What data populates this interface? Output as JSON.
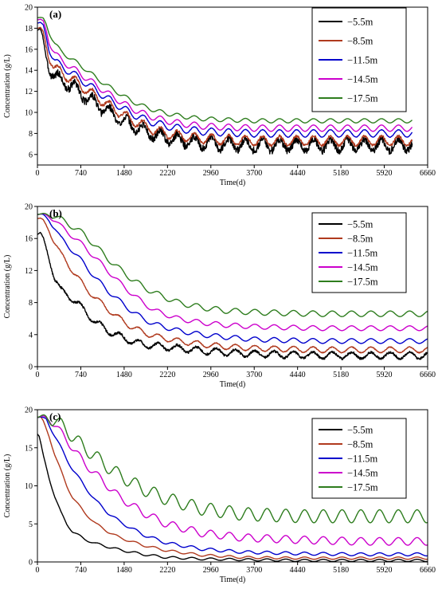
{
  "chart_data": [
    {
      "type": "line",
      "panel_label": "(a)",
      "xlabel": "Time(d)",
      "ylabel": "Concentration (g/L)",
      "xlim": [
        0,
        6660
      ],
      "ylim": [
        5,
        20
      ],
      "xticks": [
        0,
        740,
        1480,
        2220,
        2960,
        3700,
        4440,
        5180,
        5920,
        6660
      ],
      "yticks": [
        6,
        8,
        10,
        12,
        14,
        16,
        18,
        20
      ],
      "legend_position": "top-right",
      "series": [
        {
          "name": "−5.5m",
          "color": "#000000",
          "x": [
            0,
            50,
            100,
            150,
            200,
            300,
            400,
            600,
            800,
            1000,
            1200,
            1400,
            1600,
            1800,
            2000,
            2200,
            2500,
            2800,
            3200,
            3700,
            4200,
            4700,
            5200,
            5700,
            6200,
            6400
          ],
          "y": [
            17.8,
            17.9,
            16.8,
            15.2,
            14.3,
            13.4,
            13.0,
            12.5,
            11.6,
            10.8,
            10.1,
            9.4,
            8.8,
            8.3,
            7.9,
            7.6,
            7.3,
            7.1,
            7.0,
            6.9,
            6.9,
            6.9,
            6.9,
            6.9,
            6.9,
            6.9
          ],
          "osc_amp": 0.55,
          "osc_period": 290,
          "noise": 0.35
        },
        {
          "name": "−8.5m",
          "color": "#b03a1e",
          "x": [
            0,
            50,
            100,
            150,
            200,
            300,
            400,
            600,
            800,
            1000,
            1200,
            1400,
            1600,
            1800,
            2000,
            2200,
            2500,
            2800,
            3200,
            3700,
            4200,
            4700,
            5200,
            5700,
            6200,
            6400
          ],
          "y": [
            18.0,
            18.0,
            17.5,
            16.3,
            15.2,
            14.2,
            13.8,
            13.1,
            12.3,
            11.5,
            10.7,
            10.0,
            9.3,
            8.8,
            8.3,
            8.0,
            7.7,
            7.5,
            7.4,
            7.3,
            7.3,
            7.3,
            7.3,
            7.3,
            7.3,
            7.3
          ],
          "osc_amp": 0.45,
          "osc_period": 290,
          "noise": 0.12
        },
        {
          "name": "−11.5m",
          "color": "#0000cc",
          "x": [
            0,
            50,
            100,
            150,
            200,
            300,
            400,
            600,
            800,
            1000,
            1200,
            1400,
            1600,
            1800,
            2000,
            2200,
            2500,
            2800,
            3200,
            3700,
            4200,
            4700,
            5200,
            5700,
            6200,
            6400
          ],
          "y": [
            18.5,
            18.5,
            18.2,
            17.2,
            16.0,
            14.9,
            14.4,
            13.7,
            12.9,
            12.1,
            11.3,
            10.6,
            9.9,
            9.4,
            9.0,
            8.7,
            8.4,
            8.2,
            8.1,
            8.0,
            8.0,
            8.0,
            8.0,
            8.0,
            8.0,
            8.0
          ],
          "osc_amp": 0.35,
          "osc_period": 290,
          "noise": 0.02
        },
        {
          "name": "−14.5m",
          "color": "#cc00cc",
          "x": [
            0,
            50,
            100,
            150,
            200,
            300,
            400,
            600,
            800,
            1000,
            1200,
            1400,
            1600,
            1800,
            2000,
            2200,
            2500,
            2800,
            3200,
            3700,
            4200,
            4700,
            5200,
            5700,
            6200,
            6400
          ],
          "y": [
            18.8,
            18.8,
            18.6,
            17.8,
            16.7,
            15.6,
            15.0,
            14.2,
            13.4,
            12.6,
            11.8,
            11.1,
            10.4,
            9.9,
            9.5,
            9.2,
            8.9,
            8.7,
            8.6,
            8.5,
            8.5,
            8.5,
            8.5,
            8.5,
            8.5,
            8.5
          ],
          "osc_amp": 0.3,
          "osc_period": 290,
          "noise": 0.0
        },
        {
          "name": "−17.5m",
          "color": "#2e7d1e",
          "x": [
            0,
            50,
            100,
            150,
            200,
            300,
            400,
            600,
            800,
            1000,
            1200,
            1400,
            1600,
            1800,
            2000,
            2200,
            2500,
            2800,
            3200,
            3700,
            4200,
            4700,
            5200,
            5700,
            6200,
            6400
          ],
          "y": [
            19.0,
            19.0,
            18.9,
            18.4,
            17.6,
            16.5,
            15.8,
            15.0,
            14.2,
            13.3,
            12.5,
            11.8,
            11.1,
            10.6,
            10.2,
            9.9,
            9.6,
            9.4,
            9.3,
            9.2,
            9.2,
            9.2,
            9.2,
            9.2,
            9.2,
            9.2
          ],
          "osc_amp": 0.2,
          "osc_period": 290,
          "noise": 0.0
        }
      ]
    },
    {
      "type": "line",
      "panel_label": "(b)",
      "xlabel": "Time(d)",
      "ylabel": "Concentration (g/L)",
      "xlim": [
        0,
        6660
      ],
      "ylim": [
        0,
        20
      ],
      "xticks": [
        0,
        740,
        1480,
        2220,
        2960,
        3700,
        4440,
        5180,
        5920,
        6660
      ],
      "yticks": [
        0,
        4,
        8,
        12,
        16,
        20
      ],
      "legend_position": "top-right",
      "series": [
        {
          "name": "−5.5m",
          "color": "#000000",
          "x": [
            0,
            50,
            100,
            200,
            300,
            400,
            600,
            800,
            1000,
            1200,
            1400,
            1600,
            1800,
            2000,
            2400,
            2800,
            3200,
            3700,
            4200,
            4800,
            5400,
            6000,
            6660
          ],
          "y": [
            16.5,
            16.7,
            16.0,
            13.5,
            11.0,
            9.5,
            8.5,
            7.0,
            5.5,
            4.5,
            3.8,
            3.2,
            2.8,
            2.6,
            2.3,
            2.0,
            1.8,
            1.6,
            1.5,
            1.4,
            1.4,
            1.4,
            1.4
          ],
          "osc_amp": 0.4,
          "osc_period": 330,
          "noise": 0.15
        },
        {
          "name": "−8.5m",
          "color": "#b03a1e",
          "x": [
            0,
            50,
            100,
            200,
            300,
            400,
            600,
            800,
            1000,
            1200,
            1400,
            1600,
            1800,
            2000,
            2400,
            2800,
            3200,
            3700,
            4200,
            4800,
            5400,
            6000,
            6660
          ],
          "y": [
            18.5,
            18.5,
            18.2,
            17.0,
            15.5,
            14.0,
            12.0,
            10.0,
            8.5,
            7.2,
            6.0,
            5.0,
            4.3,
            3.8,
            3.2,
            2.8,
            2.5,
            2.3,
            2.2,
            2.1,
            2.1,
            2.1,
            2.1
          ],
          "osc_amp": 0.35,
          "osc_period": 330,
          "noise": 0.05
        },
        {
          "name": "−11.5m",
          "color": "#0000cc",
          "x": [
            0,
            50,
            100,
            200,
            300,
            400,
            600,
            800,
            1000,
            1200,
            1400,
            1600,
            1800,
            2000,
            2400,
            2800,
            3200,
            3700,
            4200,
            4800,
            5400,
            6000,
            6660
          ],
          "y": [
            19.0,
            19.0,
            18.9,
            18.3,
            17.3,
            16.0,
            14.5,
            12.8,
            11.0,
            9.5,
            8.2,
            7.0,
            6.0,
            5.3,
            4.5,
            4.0,
            3.7,
            3.4,
            3.3,
            3.2,
            3.2,
            3.2,
            3.2
          ],
          "osc_amp": 0.3,
          "osc_period": 330,
          "noise": 0.0
        },
        {
          "name": "−14.5m",
          "color": "#cc00cc",
          "x": [
            0,
            50,
            100,
            200,
            300,
            400,
            600,
            800,
            1000,
            1200,
            1400,
            1600,
            1800,
            2000,
            2400,
            2800,
            3200,
            3700,
            4200,
            4800,
            5400,
            6000,
            6660
          ],
          "y": [
            19.0,
            19.0,
            19.0,
            18.8,
            18.3,
            17.5,
            16.3,
            15.0,
            13.5,
            12.0,
            10.5,
            9.2,
            8.0,
            7.0,
            6.0,
            5.5,
            5.2,
            5.0,
            4.9,
            4.8,
            4.8,
            4.8,
            4.8
          ],
          "osc_amp": 0.3,
          "osc_period": 330,
          "noise": 0.0
        },
        {
          "name": "−17.5m",
          "color": "#2e7d1e",
          "x": [
            0,
            50,
            100,
            200,
            300,
            400,
            600,
            800,
            1000,
            1200,
            1400,
            1600,
            1800,
            2000,
            2400,
            2800,
            3200,
            3700,
            4200,
            4800,
            5400,
            6000,
            6660
          ],
          "y": [
            19.0,
            19.0,
            19.0,
            19.0,
            18.8,
            18.4,
            17.5,
            16.5,
            15.0,
            13.5,
            12.2,
            11.0,
            10.0,
            9.2,
            8.0,
            7.4,
            7.0,
            6.8,
            6.7,
            6.6,
            6.6,
            6.6,
            6.6
          ],
          "osc_amp": 0.35,
          "osc_period": 330,
          "noise": 0.0
        }
      ]
    },
    {
      "type": "line",
      "panel_label": "(c)",
      "xlabel": "Time(d)",
      "ylabel": "Concentration (g/L)",
      "xlim": [
        0,
        6660
      ],
      "ylim": [
        0,
        20
      ],
      "xticks": [
        0,
        740,
        1480,
        2220,
        2960,
        3700,
        4440,
        5180,
        5920,
        6660
      ],
      "yticks": [
        0,
        5,
        10,
        15,
        20
      ],
      "legend_position": "top-right",
      "series": [
        {
          "name": "−5.5m",
          "color": "#000000",
          "x": [
            0,
            30,
            60,
            100,
            200,
            300,
            400,
            500,
            600,
            800,
            1000,
            1200,
            1400,
            1800,
            2200,
            2800,
            3500,
            4500,
            5500,
            6660
          ],
          "y": [
            16.8,
            16.5,
            15.5,
            14.0,
            11.0,
            8.5,
            6.5,
            5.0,
            4.0,
            3.0,
            2.4,
            2.0,
            1.6,
            1.0,
            0.6,
            0.4,
            0.3,
            0.2,
            0.2,
            0.2
          ],
          "osc_amp": 0.15,
          "osc_period": 320,
          "noise": 0.0
        },
        {
          "name": "−8.5m",
          "color": "#b03a1e",
          "x": [
            0,
            60,
            100,
            200,
            300,
            400,
            500,
            600,
            800,
            1000,
            1200,
            1400,
            1800,
            2200,
            2800,
            3500,
            4500,
            5500,
            6660
          ],
          "y": [
            19.0,
            19.0,
            18.5,
            16.5,
            14.0,
            12.0,
            10.0,
            8.5,
            6.5,
            5.0,
            4.0,
            3.2,
            2.2,
            1.5,
            0.9,
            0.6,
            0.5,
            0.5,
            0.5
          ],
          "osc_amp": 0.15,
          "osc_period": 320,
          "noise": 0.0
        },
        {
          "name": "−11.5m",
          "color": "#0000cc",
          "x": [
            0,
            60,
            150,
            200,
            300,
            400,
            500,
            600,
            800,
            1000,
            1200,
            1400,
            1800,
            2200,
            2800,
            3500,
            4500,
            5500,
            6660
          ],
          "y": [
            19.0,
            19.0,
            18.8,
            18.0,
            16.5,
            15.0,
            13.5,
            12.2,
            10.0,
            8.0,
            6.5,
            5.3,
            3.6,
            2.5,
            1.7,
            1.3,
            1.1,
            1.0,
            1.0
          ],
          "osc_amp": 0.2,
          "osc_period": 320,
          "noise": 0.0
        },
        {
          "name": "−14.5m",
          "color": "#cc00cc",
          "x": [
            0,
            100,
            200,
            300,
            400,
            500,
            600,
            800,
            1000,
            1200,
            1400,
            1800,
            2200,
            2800,
            3500,
            4500,
            5500,
            6660
          ],
          "y": [
            19.0,
            19.0,
            18.8,
            18.0,
            17.0,
            16.0,
            15.0,
            13.0,
            11.5,
            10.0,
            8.5,
            6.5,
            5.0,
            3.8,
            3.2,
            2.9,
            2.7,
            2.7
          ],
          "osc_amp": 0.5,
          "osc_period": 320,
          "noise": 0.0
        },
        {
          "name": "−17.5m",
          "color": "#2e7d1e",
          "x": [
            0,
            150,
            300,
            400,
            500,
            600,
            800,
            1000,
            1200,
            1400,
            1800,
            2200,
            2800,
            3500,
            4500,
            5500,
            6660
          ],
          "y": [
            19.0,
            19.0,
            18.6,
            18.0,
            17.3,
            16.5,
            15.0,
            13.8,
            12.5,
            11.4,
            9.6,
            8.3,
            7.0,
            6.3,
            6.0,
            6.0,
            6.0
          ],
          "osc_amp": 0.85,
          "osc_period": 320,
          "noise": 0.0
        }
      ]
    }
  ]
}
